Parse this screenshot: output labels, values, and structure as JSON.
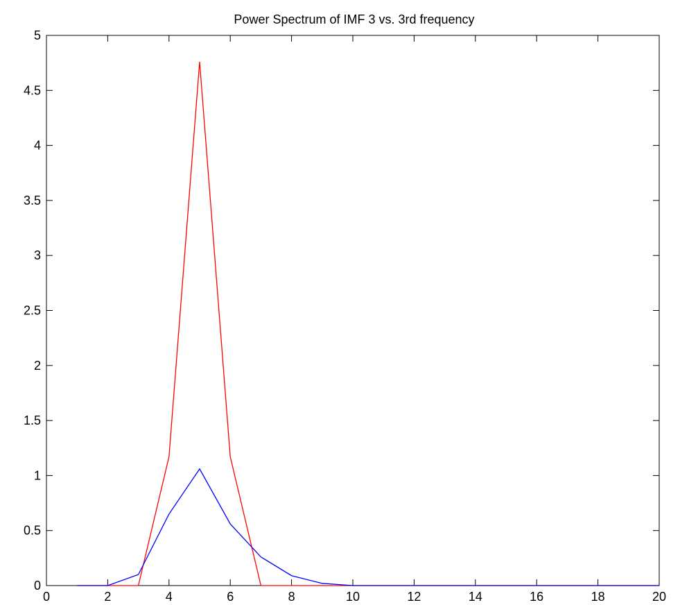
{
  "chart_data": {
    "type": "line",
    "title": "Power Spectrum of IMF 3 vs. 3rd frequency",
    "xlabel": "",
    "ylabel": "",
    "xlim": [
      0,
      20
    ],
    "ylim": [
      0,
      5
    ],
    "x_ticks": [
      0,
      2,
      4,
      6,
      8,
      10,
      12,
      14,
      16,
      18,
      20
    ],
    "x_tick_labels": [
      "0",
      "2",
      "4",
      "6",
      "8",
      "10",
      "12",
      "14",
      "16",
      "18",
      "20"
    ],
    "y_ticks": [
      0,
      0.5,
      1,
      1.5,
      2,
      2.5,
      3,
      3.5,
      4,
      4.5,
      5
    ],
    "y_tick_labels": [
      "0",
      "0.5",
      "1",
      "1.5",
      "2",
      "2.5",
      "3",
      "3.5",
      "4",
      "4.5",
      "5"
    ],
    "grid": false,
    "legend": "none",
    "series": [
      {
        "color": "#ff0000",
        "x": [
          1,
          2,
          3,
          4,
          5,
          6,
          7,
          8,
          9,
          10,
          11,
          12,
          13,
          14,
          15,
          16,
          17,
          18,
          19,
          20
        ],
        "y": [
          0,
          0,
          0,
          1.17,
          4.76,
          1.17,
          0,
          0,
          0,
          0,
          0,
          0,
          0,
          0,
          0,
          0,
          0,
          0,
          0,
          0
        ]
      },
      {
        "color": "#0000ff",
        "x": [
          1,
          2,
          3,
          4,
          5,
          6,
          7,
          8,
          9,
          10,
          11,
          12,
          13,
          14,
          15,
          16,
          17,
          18,
          19,
          20
        ],
        "y": [
          0,
          0,
          0.1,
          0.65,
          1.06,
          0.56,
          0.26,
          0.09,
          0.02,
          0,
          0,
          0,
          0,
          0,
          0,
          0,
          0,
          0,
          0,
          0
        ]
      }
    ]
  }
}
